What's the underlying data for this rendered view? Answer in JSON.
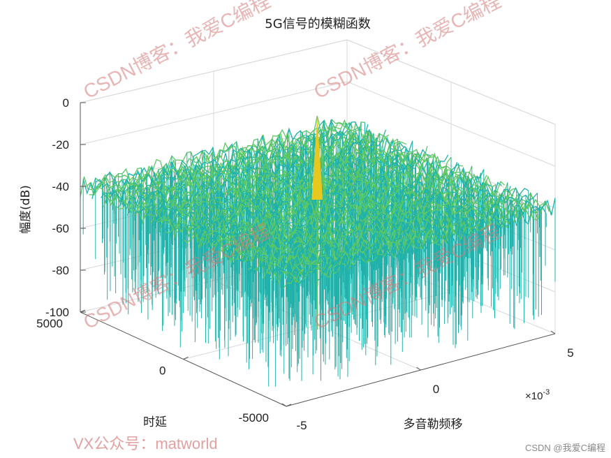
{
  "chart_data": {
    "type": "surface",
    "title": "5G信号的模糊函数",
    "xlabel": "多音勒频移",
    "ylabel": "时延",
    "zlabel": "幅度(dB)",
    "x_exponent_label": "×10",
    "x_exponent_power": "-3",
    "xlim": [
      -0.005,
      0.005
    ],
    "ylim": [
      -5000,
      5000
    ],
    "zlim": [
      -100,
      0
    ],
    "x_ticks": [
      "-5",
      "0",
      "5"
    ],
    "y_ticks": [
      "5000",
      "0",
      "-5000"
    ],
    "z_ticks": [
      "0",
      "-20",
      "-40",
      "-60",
      "-80",
      "-100"
    ],
    "peak": {
      "x": 0,
      "y": 0,
      "z": 0
    },
    "noise_floor_db": -40,
    "colormap": "parula",
    "grid": true
  },
  "watermarks": [
    "CSDN博客：我爱C编程",
    "VX公众号：matworld"
  ],
  "footer": "CSDN @我爱C编程",
  "colors": {
    "low": "#20b2aa",
    "mid": "#5cc864",
    "high": "#e6c81e"
  }
}
